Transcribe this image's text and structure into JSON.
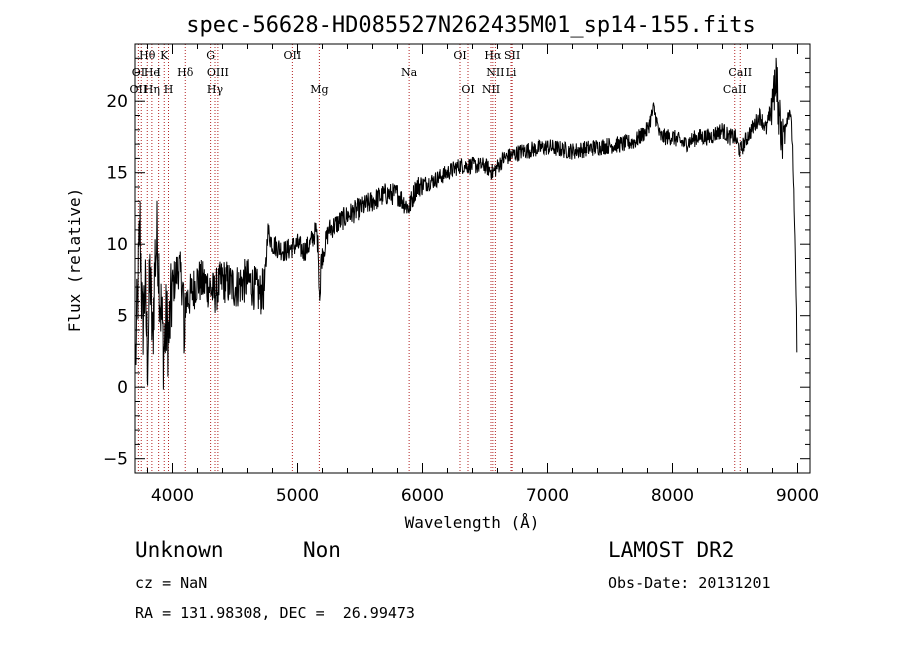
{
  "chart_data": {
    "type": "line",
    "title": "spec-56628-HD085527N262435M01_sp14-155.fits",
    "xlabel": "Wavelength (Å)",
    "ylabel": "Flux (relative)",
    "xlim": [
      3700,
      9100
    ],
    "ylim": [
      -6,
      24
    ],
    "xticks": [
      4000,
      5000,
      6000,
      7000,
      8000,
      9000
    ],
    "yticks": [
      -5,
      0,
      5,
      10,
      15,
      20
    ],
    "grid": false,
    "series": [
      {
        "anchors": [
          [
            3705,
            2.0
          ],
          [
            3720,
            6.0
          ],
          [
            3740,
            11.5
          ],
          [
            3760,
            4.0
          ],
          [
            3780,
            7.0
          ],
          [
            3800,
            2.0
          ],
          [
            3820,
            8.0
          ],
          [
            3840,
            3.0
          ],
          [
            3860,
            9.0
          ],
          [
            3880,
            10.5
          ],
          [
            3900,
            6.5
          ],
          [
            3930,
            2.5
          ],
          [
            3950,
            4.5
          ],
          [
            3970,
            3.5
          ],
          [
            4000,
            7.0
          ],
          [
            4050,
            8.5
          ],
          [
            4100,
            6.0
          ],
          [
            4150,
            6.5
          ],
          [
            4200,
            7.5
          ],
          [
            4300,
            7.0
          ],
          [
            4330,
            6.5
          ],
          [
            4400,
            7.5
          ],
          [
            4500,
            7.0
          ],
          [
            4600,
            7.5
          ],
          [
            4700,
            6.5
          ],
          [
            4740,
            7.0
          ],
          [
            4760,
            11.0
          ],
          [
            4800,
            10.0
          ],
          [
            4900,
            9.5
          ],
          [
            5000,
            10.0
          ],
          [
            5050,
            9.5
          ],
          [
            5100,
            10.0
          ],
          [
            5150,
            11.0
          ],
          [
            5180,
            8.5
          ],
          [
            5250,
            11.0
          ],
          [
            5400,
            12.0
          ],
          [
            5500,
            12.5
          ],
          [
            5600,
            13.0
          ],
          [
            5700,
            13.5
          ],
          [
            5800,
            13.5
          ],
          [
            5890,
            12.5
          ],
          [
            5950,
            14.0
          ],
          [
            6100,
            14.5
          ],
          [
            6200,
            15.0
          ],
          [
            6300,
            15.5
          ],
          [
            6400,
            15.5
          ],
          [
            6500,
            15.5
          ],
          [
            6563,
            15.0
          ],
          [
            6650,
            16.0
          ],
          [
            6800,
            16.5
          ],
          [
            7000,
            16.8
          ],
          [
            7200,
            16.5
          ],
          [
            7400,
            16.8
          ],
          [
            7600,
            17.0
          ],
          [
            7700,
            17.2
          ],
          [
            7800,
            18.0
          ],
          [
            7850,
            19.5
          ],
          [
            7900,
            17.5
          ],
          [
            8000,
            17.5
          ],
          [
            8100,
            17.0
          ],
          [
            8200,
            17.5
          ],
          [
            8300,
            17.5
          ],
          [
            8400,
            18.0
          ],
          [
            8450,
            17.5
          ],
          [
            8500,
            17.5
          ],
          [
            8540,
            16.5
          ],
          [
            8600,
            17.5
          ],
          [
            8700,
            19.0
          ],
          [
            8750,
            18.0
          ],
          [
            8800,
            20.0
          ],
          [
            8830,
            22.0
          ],
          [
            8850,
            19.0
          ],
          [
            8880,
            17.5
          ],
          [
            8920,
            19.0
          ],
          [
            8940,
            19.5
          ],
          [
            8960,
            17.0
          ],
          [
            8990,
            6.0
          ],
          [
            8995,
            1.0
          ]
        ]
      }
    ],
    "line_labels": [
      {
        "text": "Hθ",
        "x": 3798,
        "row": 1
      },
      {
        "text": "K",
        "x": 3934,
        "row": 1
      },
      {
        "text": "G",
        "x": 4305,
        "row": 1
      },
      {
        "text": "OII",
        "x": 4959,
        "row": 1
      },
      {
        "text": "OI",
        "x": 6300,
        "row": 1
      },
      {
        "text": "Hα",
        "x": 6563,
        "row": 1
      },
      {
        "text": "SII",
        "x": 6717,
        "row": 1
      },
      {
        "text": "OI",
        "x": 3727,
        "row": 2
      },
      {
        "text": "He",
        "x": 3835,
        "row": 2
      },
      {
        "text": "I",
        "x": 3889,
        "row": 2
      },
      {
        "text": "Hδ",
        "x": 4102,
        "row": 2
      },
      {
        "text": "OIII",
        "x": 4363,
        "row": 2
      },
      {
        "text": "Na",
        "x": 5893,
        "row": 2
      },
      {
        "text": "NII",
        "x": 6583,
        "row": 2
      },
      {
        "text": "Li",
        "x": 6708,
        "row": 2
      },
      {
        "text": "CaII",
        "x": 8542,
        "row": 2
      },
      {
        "text": "OII",
        "x": 3727,
        "row": 3
      },
      {
        "text": "Hη",
        "x": 3835,
        "row": 3
      },
      {
        "text": "H",
        "x": 3968,
        "row": 3
      },
      {
        "text": "Hγ",
        "x": 4340,
        "row": 3
      },
      {
        "text": "Mg",
        "x": 5175,
        "row": 3
      },
      {
        "text": "OI",
        "x": 6364,
        "row": 3
      },
      {
        "text": "NII",
        "x": 6548,
        "row": 3
      },
      {
        "text": "CaII",
        "x": 8498,
        "row": 3
      }
    ],
    "line_markers": [
      3727,
      3750,
      3798,
      3835,
      3889,
      3934,
      3968,
      4102,
      4305,
      4340,
      4363,
      4959,
      5175,
      5893,
      6300,
      6364,
      6548,
      6563,
      6583,
      6708,
      6717,
      8498,
      8542
    ]
  },
  "info": {
    "class": "Unknown",
    "subclass": "Non",
    "survey": "LAMOST DR2",
    "cz": "cz = NaN",
    "obsdate": "Obs-Date: 20131201",
    "coords": "RA = 131.98308, DEC =  26.99473"
  }
}
